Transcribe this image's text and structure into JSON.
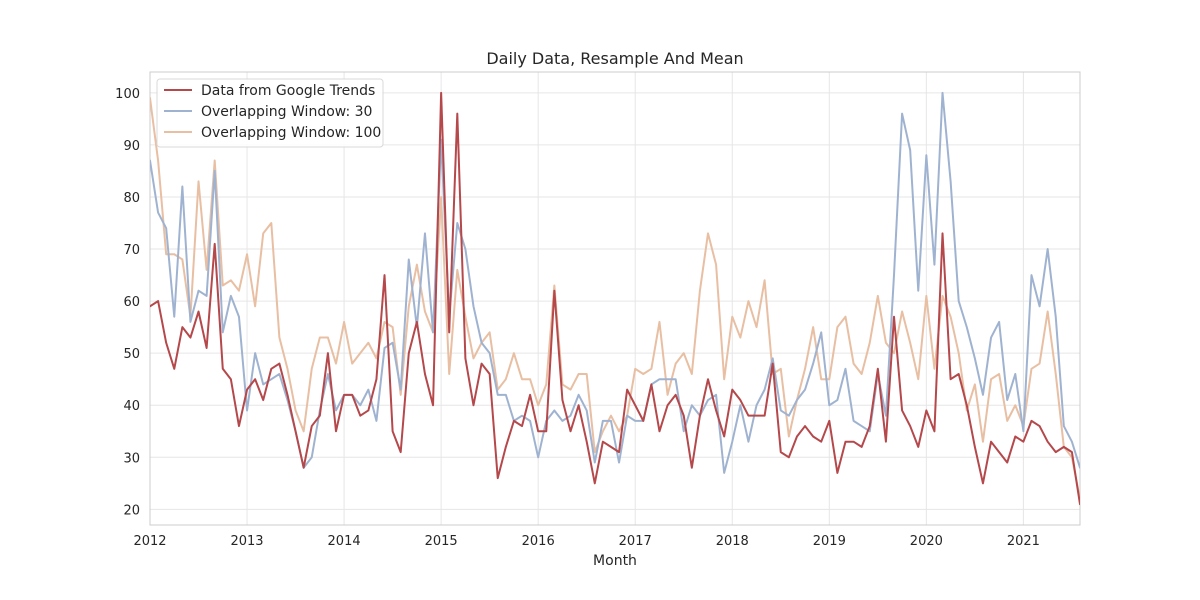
{
  "chart_data": {
    "type": "line",
    "title": "Daily Data, Resample And Mean",
    "xlabel": "Month",
    "ylabel": "",
    "x_ticks": [
      "2012",
      "2013",
      "2014",
      "2015",
      "2016",
      "2017",
      "2018",
      "2019",
      "2020",
      "2021"
    ],
    "y_ticks": [
      "20",
      "30",
      "40",
      "50",
      "60",
      "70",
      "80",
      "90",
      "100"
    ],
    "xlim": [
      "2012-01",
      "2021-08"
    ],
    "ylim": [
      17,
      104
    ],
    "grid": true,
    "legend_position": "upper left",
    "x_start": "2012-01",
    "x_frequency": "monthly",
    "series": [
      {
        "name": "Data from Google Trends",
        "color": "#b5484b",
        "values": [
          59,
          60,
          52,
          47,
          55,
          53,
          58,
          51,
          71,
          47,
          45,
          36,
          43,
          45,
          41,
          47,
          48,
          42,
          35,
          28,
          36,
          38,
          50,
          35,
          42,
          42,
          38,
          39,
          45,
          65,
          35,
          31,
          50,
          56,
          46,
          40,
          100,
          54,
          96,
          49,
          40,
          48,
          46,
          26,
          32,
          37,
          36,
          42,
          35,
          35,
          62,
          41,
          35,
          40,
          33,
          25,
          33,
          32,
          31,
          43,
          40,
          37,
          44,
          35,
          40,
          42,
          38,
          28,
          38,
          45,
          39,
          34,
          43,
          41,
          38,
          38,
          38,
          48,
          31,
          30,
          34,
          36,
          34,
          33,
          37,
          27,
          33,
          33,
          32,
          36,
          47,
          33,
          57,
          39,
          36,
          32,
          39,
          35,
          73,
          45,
          46,
          40,
          32,
          25,
          33,
          31,
          29,
          34,
          33,
          37,
          36,
          33,
          31,
          32,
          31,
          21
        ]
      },
      {
        "name": "Overlapping Window: 30",
        "color": "#9fb3d1",
        "values": [
          87,
          77,
          74,
          57,
          82,
          56,
          62,
          61,
          85,
          54,
          61,
          57,
          39,
          50,
          44,
          45,
          46,
          41,
          35,
          28,
          30,
          39,
          46,
          39,
          42,
          42,
          40,
          43,
          37,
          51,
          52,
          43,
          68,
          55,
          73,
          54,
          91,
          57,
          75,
          70,
          59,
          52,
          50,
          42,
          42,
          37,
          38,
          37,
          30,
          37,
          39,
          37,
          38,
          42,
          39,
          29,
          37,
          37,
          29,
          38,
          37,
          37,
          44,
          45,
          45,
          45,
          35,
          40,
          38,
          41,
          42,
          27,
          33,
          40,
          33,
          40,
          43,
          49,
          39,
          38,
          41,
          43,
          48,
          54,
          40,
          41,
          47,
          37,
          36,
          35,
          46,
          38,
          65,
          96,
          89,
          62,
          88,
          67,
          100,
          83,
          60,
          55,
          49,
          42,
          53,
          56,
          41,
          46,
          35,
          65,
          59,
          70,
          57,
          36,
          33,
          28
        ]
      },
      {
        "name": "Overlapping Window: 100",
        "color": "#e8bfa3",
        "values": [
          99,
          87,
          69,
          69,
          68,
          57,
          83,
          66,
          87,
          63,
          64,
          62,
          69,
          59,
          73,
          75,
          53,
          47,
          39,
          35,
          47,
          53,
          53,
          48,
          56,
          48,
          50,
          52,
          49,
          56,
          55,
          42,
          59,
          67,
          58,
          54,
          80,
          46,
          66,
          57,
          49,
          52,
          54,
          43,
          45,
          50,
          45,
          45,
          40,
          44,
          63,
          44,
          43,
          46,
          46,
          31,
          35,
          38,
          35,
          38,
          47,
          46,
          47,
          56,
          42,
          48,
          50,
          46,
          62,
          73,
          67,
          45,
          57,
          53,
          60,
          55,
          64,
          46,
          47,
          34,
          41,
          47,
          55,
          45,
          45,
          55,
          57,
          48,
          46,
          52,
          61,
          52,
          50,
          58,
          52,
          45,
          61,
          47,
          61,
          57,
          50,
          39,
          44,
          33,
          45,
          46,
          37,
          40,
          36,
          47,
          48,
          58,
          46,
          32,
          30,
          22
        ]
      }
    ]
  }
}
